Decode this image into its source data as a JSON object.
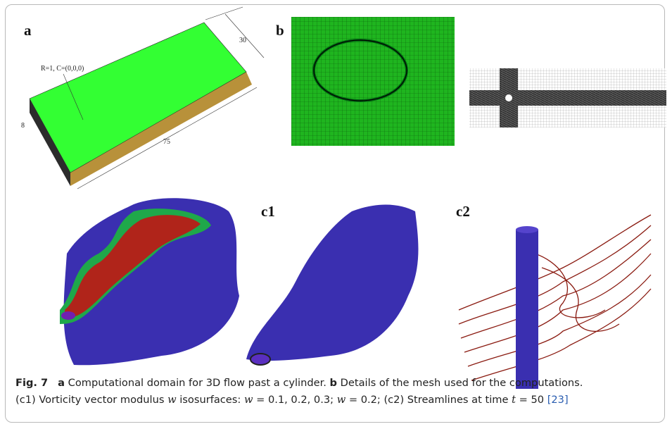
{
  "panels": {
    "a": {
      "label": "a",
      "dims": {
        "width": "30",
        "radius": "R=1, C=(0,0,0)",
        "height": "8",
        "length": "75"
      }
    },
    "b": {
      "label": "b"
    },
    "c1": {
      "label": "c1"
    },
    "c2": {
      "label": "c2"
    }
  },
  "caption": {
    "fig": "Fig. 7",
    "a": "a",
    "a_text": "Computational domain for 3D flow past a cylinder.",
    "b": "b",
    "b_text": "Details of the mesh used for the computations.",
    "line2": [
      "(c1) Vorticity vector modulus ",
      "w",
      " isosurfaces: ",
      "w",
      " = 0.1, 0.2, 0.3; ",
      "w",
      " = 0.2; (c2) Streamlines at time ",
      "t",
      " = 50 ",
      "[23]"
    ]
  }
}
